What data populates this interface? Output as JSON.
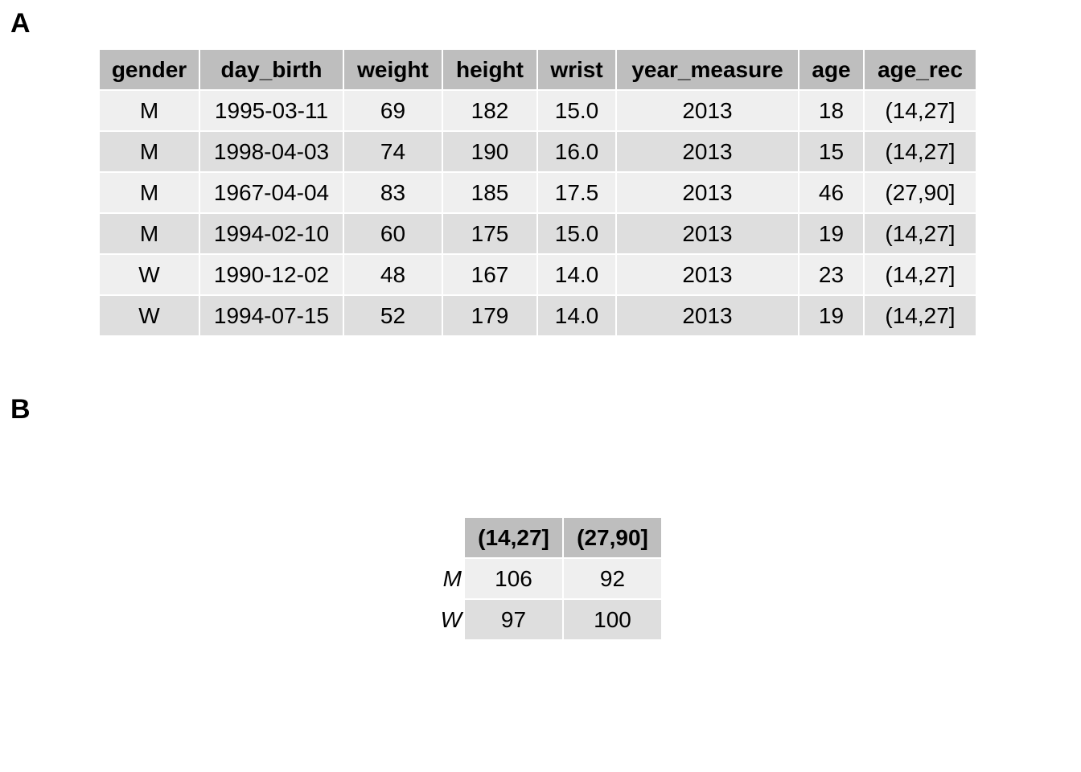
{
  "panels": {
    "a_label": "A",
    "b_label": "B"
  },
  "chart_data": [
    {
      "type": "table",
      "columns": [
        "gender",
        "day_birth",
        "weight",
        "height",
        "wrist",
        "year_measure",
        "age",
        "age_rec"
      ],
      "rows": [
        [
          "M",
          "1995-03-11",
          "69",
          "182",
          "15.0",
          "2013",
          "18",
          "(14,27]"
        ],
        [
          "M",
          "1998-04-03",
          "74",
          "190",
          "16.0",
          "2013",
          "15",
          "(14,27]"
        ],
        [
          "M",
          "1967-04-04",
          "83",
          "185",
          "17.5",
          "2013",
          "46",
          "(27,90]"
        ],
        [
          "M",
          "1994-02-10",
          "60",
          "175",
          "15.0",
          "2013",
          "19",
          "(14,27]"
        ],
        [
          "W",
          "1990-12-02",
          "48",
          "167",
          "14.0",
          "2013",
          "23",
          "(14,27]"
        ],
        [
          "W",
          "1994-07-15",
          "52",
          "179",
          "14.0",
          "2013",
          "19",
          "(14,27]"
        ]
      ],
      "header_color": "#bebebe",
      "row_colors": [
        "#efefef",
        "#dedede"
      ]
    },
    {
      "type": "table",
      "columns": [
        "(14,27]",
        "(27,90]"
      ],
      "row_labels": [
        "M",
        "W"
      ],
      "rows": [
        [
          "106",
          "92"
        ],
        [
          "97",
          "100"
        ]
      ],
      "header_color": "#bebebe",
      "row_colors": [
        "#efefef",
        "#dedede"
      ]
    }
  ]
}
